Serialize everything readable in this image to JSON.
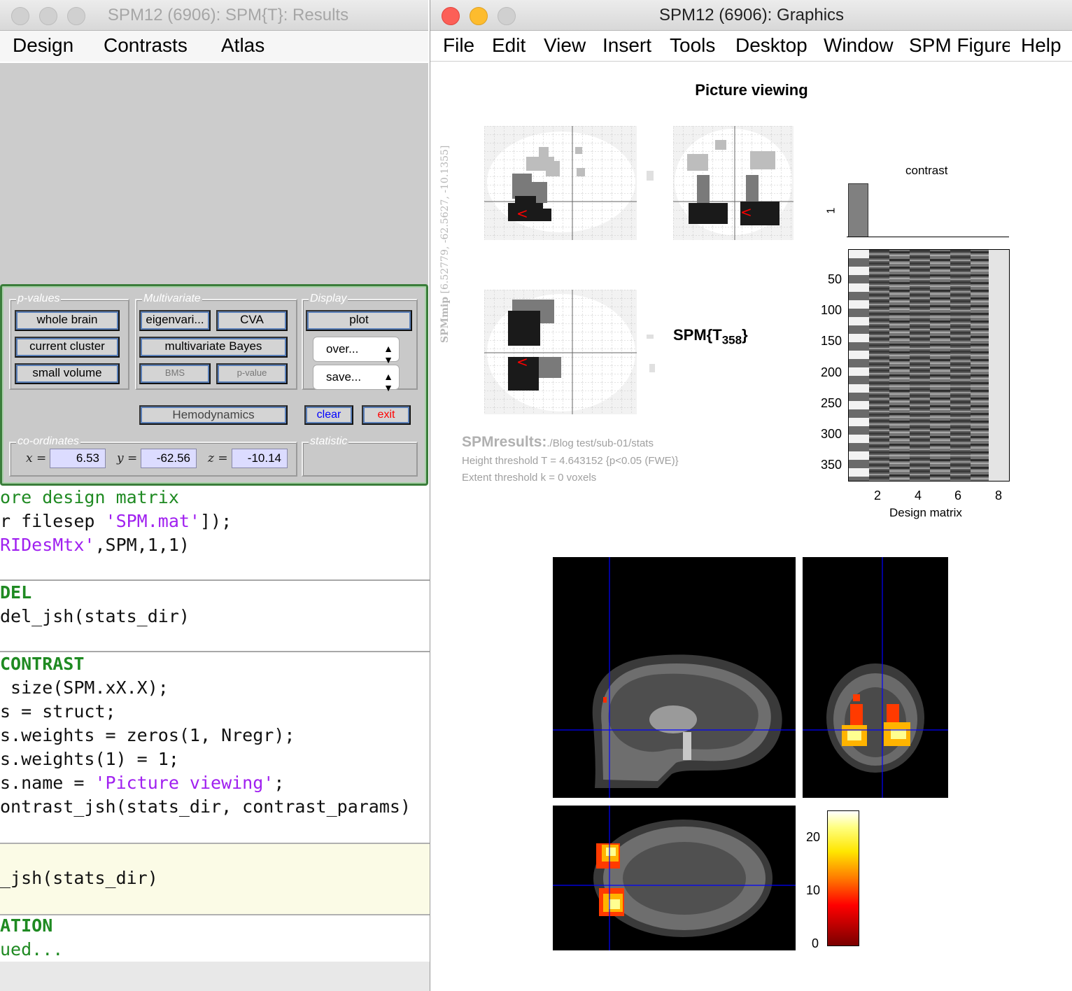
{
  "results_window": {
    "title": "SPM12 (6906): SPM{T}: Results",
    "menu": [
      "Design",
      "Contrasts",
      "Atlas"
    ],
    "groups": {
      "p_values": "p-values",
      "multivariate": "Multivariate",
      "display": "Display",
      "coordinates": "co-ordinates",
      "statistic": "statistic"
    },
    "buttons": {
      "whole_brain": "whole brain",
      "current_cluster": "current cluster",
      "small_volume": "small volume",
      "eigenvariate": "eigenvari...",
      "cva": "CVA",
      "multivariate_bayes": "multivariate Bayes",
      "bms": "BMS",
      "p_value": "p-value",
      "plot": "plot",
      "overlay": "over...",
      "save": "save...",
      "hemodynamics": "Hemodynamics",
      "clear": "clear",
      "exit": "exit"
    },
    "coords": {
      "x_label": "x =",
      "y_label": "y =",
      "z_label": "z =",
      "x": "6.53",
      "y": "-62.56",
      "z": "-10.14"
    }
  },
  "editor": {
    "lines": [
      {
        "pre": "",
        "cmt": "ore design matrix"
      },
      {
        "pre": "r filesep ",
        "str": "'SPM.mat'",
        "post": "]);"
      },
      {
        "pre": "",
        "str": "RIDesMtx'",
        "post": ",SPM,1,1)"
      },
      {
        "head": "DEL"
      },
      {
        "pre": "del_jsh(stats_dir)"
      },
      {
        "head": "CONTRAST"
      },
      {
        "pre": " size(SPM.xX.X);"
      },
      {
        "pre": "s = struct;"
      },
      {
        "pre": "s.weights = zeros(1, Nregr);"
      },
      {
        "pre": "s.weights(1) = 1;"
      },
      {
        "pre": "s.name = ",
        "str": "'Picture viewing'",
        "post": ";"
      },
      {
        "pre": "ontrast_jsh(stats_dir, contrast_params)"
      },
      {
        "pre": "_jsh(stats_dir)"
      },
      {
        "head": "ATION"
      },
      {
        "cmt": "ued..."
      }
    ]
  },
  "graphics_window": {
    "title": "SPM12 (6906): Graphics",
    "menu": [
      "File",
      "Edit",
      "View",
      "Insert",
      "Tools",
      "Desktop",
      "Window",
      "SPM Figure",
      "Help"
    ],
    "figure_title": "Picture viewing",
    "mip_label": "SPMmip",
    "mip_coords": "[6.52779, -62.5627, -10.1355]",
    "stat_label": "SPM{T",
    "stat_df": "358",
    "stat_close": "}",
    "results_head": "SPMresults:",
    "results_path": "./Blog test/sub-01/stats",
    "height_threshold": "Height threshold T = 4.643152  {p<0.05 (FWE)}",
    "extent_threshold": "Extent threshold k = 0 voxels",
    "contrast_title": "contrast",
    "contrast_tick": "1",
    "design_y_ticks": [
      "50",
      "100",
      "150",
      "200",
      "250",
      "300",
      "350"
    ],
    "design_x_ticks": [
      "2",
      "4",
      "6",
      "8"
    ],
    "design_xlabel": "Design matrix",
    "colorbar_ticks": [
      "20",
      "10",
      "0"
    ],
    "colors": {
      "accent_blue": "#0000ff",
      "exit_red": "#ff0000"
    }
  }
}
